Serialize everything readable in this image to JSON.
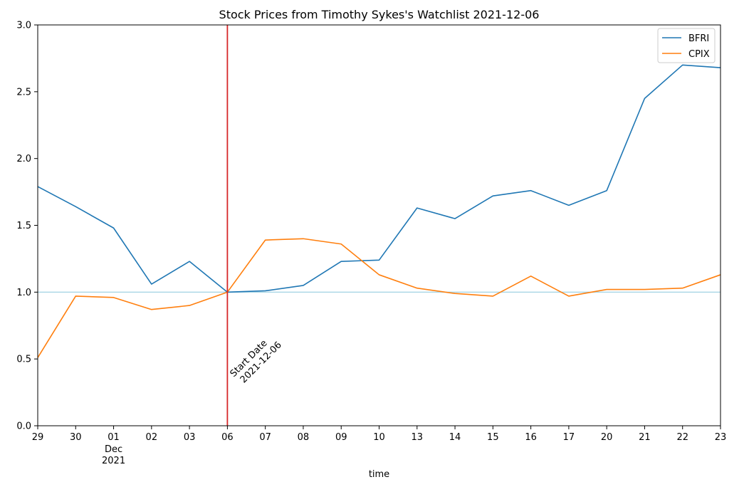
{
  "chart_data": {
    "type": "line",
    "title": "Stock Prices from Timothy Sykes's Watchlist 2021-12-06",
    "xlabel": "time",
    "ylabel": "",
    "ylim": [
      0.0,
      3.0
    ],
    "yticks": [
      "0.0",
      "0.5",
      "1.0",
      "1.5",
      "2.0",
      "2.5",
      "3.0"
    ],
    "yticks_values": [
      0.0,
      0.5,
      1.0,
      1.5,
      2.0,
      2.5,
      3.0
    ],
    "x_dates": [
      "2021-11-29",
      "2021-11-30",
      "2021-12-01",
      "2021-12-02",
      "2021-12-03",
      "2021-12-06",
      "2021-12-07",
      "2021-12-08",
      "2021-12-09",
      "2021-12-10",
      "2021-12-13",
      "2021-12-14",
      "2021-12-15",
      "2021-12-16",
      "2021-12-17",
      "2021-12-20",
      "2021-12-21",
      "2021-12-22",
      "2021-12-23"
    ],
    "x_tick_labels": [
      "29",
      "30",
      "01",
      "02",
      "03",
      "06",
      "07",
      "08",
      "09",
      "10",
      "13",
      "14",
      "15",
      "16",
      "17",
      "20",
      "21",
      "22",
      "23"
    ],
    "x_secondary_label": {
      "month": "Dec",
      "year": "2021"
    },
    "series": [
      {
        "name": "BFRI",
        "color": "#1f77b4",
        "values": [
          1.79,
          1.64,
          1.48,
          1.06,
          1.23,
          1.0,
          1.01,
          1.05,
          1.23,
          1.24,
          1.63,
          1.55,
          1.72,
          1.76,
          1.65,
          1.76,
          2.45,
          2.7,
          2.68
        ]
      },
      {
        "name": "CPIX",
        "color": "#ff7f0e",
        "values": [
          0.51,
          0.97,
          0.96,
          0.87,
          0.9,
          1.0,
          1.39,
          1.4,
          1.36,
          1.13,
          1.03,
          0.99,
          0.97,
          1.12,
          0.97,
          1.02,
          1.02,
          1.03,
          1.13
        ]
      }
    ],
    "reference_line": {
      "y": 1.0,
      "color": "#add8e6"
    },
    "start_marker": {
      "date": "2021-12-06",
      "color": "#d62728",
      "label_line1": "Start Date",
      "label_line2": "2021-12-06"
    },
    "legend": {
      "placement": "top-right"
    },
    "grid": false
  }
}
